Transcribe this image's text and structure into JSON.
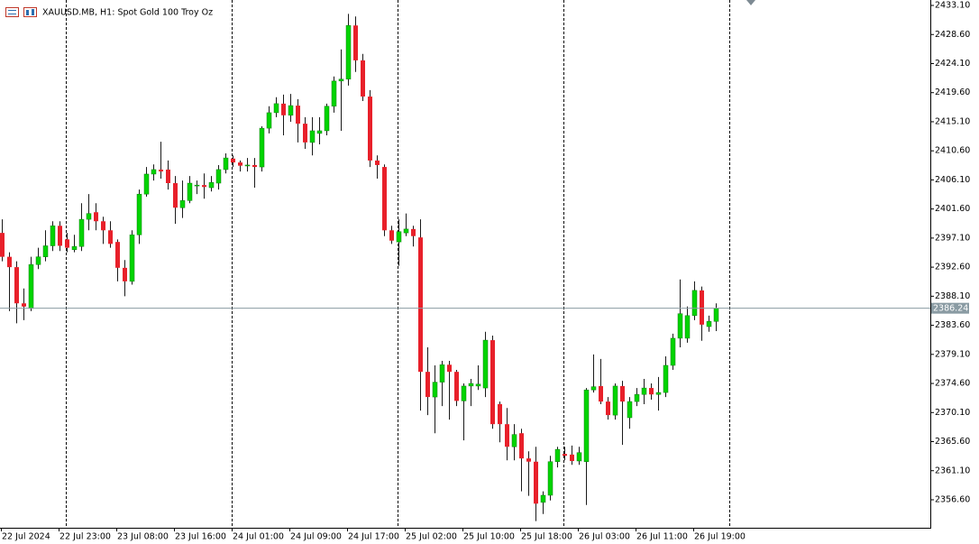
{
  "chart_data": {
    "type": "candlestick",
    "title": "XAUUSD.MB, H1:  Spot Gold 100 Troy Oz",
    "categories": [
      "22 Jul 2024",
      null,
      null,
      null,
      null,
      null,
      null,
      null,
      "22 Jul 23:00",
      null,
      null,
      null,
      null,
      null,
      null,
      null,
      "23 Jul 08:00",
      null,
      null,
      null,
      null,
      null,
      null,
      null,
      "23 Jul 16:00",
      null,
      null,
      null,
      null,
      null,
      null,
      null,
      "24 Jul 01:00",
      null,
      null,
      null,
      null,
      null,
      null,
      null,
      "24 Jul 09:00",
      null,
      null,
      null,
      null,
      null,
      null,
      null,
      "24 Jul 17:00",
      null,
      null,
      null,
      null,
      null,
      null,
      null,
      "25 Jul 02:00",
      null,
      null,
      null,
      null,
      null,
      null,
      null,
      "25 Jul 10:00",
      null,
      null,
      null,
      null,
      null,
      null,
      null,
      "25 Jul 18:00",
      null,
      null,
      null,
      null,
      null,
      null,
      null,
      "26 Jul 03:00",
      null,
      null,
      null,
      null,
      null,
      null,
      null,
      "26 Jul 11:00",
      null,
      null,
      null,
      null,
      null,
      null,
      null,
      "26 Jul 19:00",
      null,
      null,
      null
    ],
    "open": [
      2397.9,
      2394.2,
      2392.6,
      2387.0,
      2386.2,
      2393.0,
      2394.2,
      2395.9,
      2399.0,
      2396.9,
      2395.3,
      2395.8,
      2400.0,
      2401.1,
      2399.7,
      2398.3,
      2396.5,
      2392.5,
      2390.4,
      2397.6,
      2403.9,
      2407.0,
      2407.7,
      2407.7,
      2405.6,
      2401.8,
      2402.9,
      2405.3,
      2405.3,
      2404.9,
      2405.6,
      2407.7,
      2409.4,
      2408.8,
      2408.3,
      2408.4,
      2408.1,
      2414.1,
      2416.5,
      2417.9,
      2416.1,
      2417.6,
      2414.8,
      2411.9,
      2413.3,
      2413.7,
      2417.5,
      2421.4,
      2421.7,
      2430.0,
      2424.6,
      2419.0,
      2409.1,
      2408.1,
      2398.3,
      2396.5,
      2397.9,
      2398.5,
      2397.2,
      2376.4,
      2372.5,
      2374.8,
      2377.5,
      2376.4,
      2371.9,
      2374.2,
      2374.2,
      2373.9,
      2381.3,
      2371.4,
      2368.3,
      2364.8,
      2366.9,
      2363.0,
      2362.5,
      2356.2,
      2357.3,
      2362.5,
      2363.7,
      2363.6,
      2362.6,
      2362.5,
      2373.6,
      2374.2,
      2371.8,
      2369.7,
      2374.2,
      2369.3,
      2371.8,
      2372.9,
      2373.9,
      2372.9,
      2373.2,
      2377.4,
      2381.6,
      2381.6,
      2385.1,
      2389.0,
      2383.4,
      2384.2
    ],
    "high": [
      2400.0,
      2394.9,
      2393.5,
      2389.3,
      2394.2,
      2395.6,
      2398.3,
      2399.7,
      2399.7,
      2397.9,
      2397.6,
      2402.5,
      2403.9,
      2402.5,
      2400.4,
      2399.7,
      2396.9,
      2393.7,
      2398.3,
      2404.6,
      2408.1,
      2408.5,
      2412.0,
      2409.1,
      2406.7,
      2406.0,
      2406.7,
      2406.0,
      2407.1,
      2406.7,
      2408.4,
      2410.2,
      2409.9,
      2409.1,
      2409.5,
      2409.5,
      2414.4,
      2417.5,
      2418.9,
      2419.3,
      2419.4,
      2418.6,
      2415.8,
      2415.8,
      2415.8,
      2417.9,
      2422.1,
      2426.3,
      2431.8,
      2431.4,
      2425.6,
      2420.0,
      2409.9,
      2408.5,
      2399.0,
      2400.0,
      2400.9,
      2399.0,
      2400.0,
      2380.2,
      2377.4,
      2378.1,
      2378.1,
      2376.7,
      2374.6,
      2375.3,
      2377.4,
      2382.6,
      2382.0,
      2371.8,
      2370.8,
      2368.3,
      2367.6,
      2364.1,
      2364.8,
      2357.9,
      2363.4,
      2364.8,
      2364.8,
      2365.0,
      2364.8,
      2373.9,
      2379.1,
      2378.4,
      2372.5,
      2374.6,
      2375.0,
      2372.5,
      2373.9,
      2375.3,
      2374.6,
      2375.6,
      2378.8,
      2382.3,
      2390.7,
      2386.5,
      2390.4,
      2389.6,
      2385.1,
      2387.0
    ],
    "low": [
      2393.5,
      2385.8,
      2383.9,
      2384.4,
      2385.8,
      2392.3,
      2393.5,
      2395.1,
      2395.1,
      2394.9,
      2394.9,
      2395.1,
      2398.3,
      2398.3,
      2396.2,
      2395.6,
      2390.4,
      2388.1,
      2389.9,
      2396.2,
      2403.5,
      2406.0,
      2406.3,
      2404.6,
      2399.3,
      2400.2,
      2402.5,
      2403.9,
      2403.2,
      2404.3,
      2404.6,
      2407.1,
      2408.1,
      2407.4,
      2407.4,
      2404.9,
      2407.4,
      2413.3,
      2415.8,
      2413.0,
      2415.1,
      2411.9,
      2410.9,
      2409.9,
      2411.6,
      2413.0,
      2416.5,
      2413.7,
      2420.7,
      2422.8,
      2418.3,
      2408.1,
      2406.3,
      2397.4,
      2396.2,
      2392.8,
      2397.4,
      2395.8,
      2370.4,
      2369.7,
      2366.9,
      2371.1,
      2369.0,
      2371.1,
      2365.8,
      2371.1,
      2373.6,
      2372.5,
      2367.6,
      2365.5,
      2362.7,
      2362.7,
      2357.9,
      2357.2,
      2353.3,
      2354.4,
      2356.5,
      2361.6,
      2362.7,
      2362.0,
      2362.0,
      2355.8,
      2373.2,
      2371.4,
      2369.0,
      2369.0,
      2365.1,
      2367.6,
      2371.1,
      2371.4,
      2372.1,
      2370.4,
      2372.5,
      2376.7,
      2380.2,
      2380.9,
      2384.4,
      2381.2,
      2382.6,
      2382.7
    ],
    "close": [
      2394.2,
      2392.6,
      2387.0,
      2386.5,
      2393.0,
      2394.2,
      2395.9,
      2399.0,
      2395.9,
      2395.6,
      2395.8,
      2400.0,
      2400.9,
      2399.7,
      2398.3,
      2396.2,
      2392.5,
      2390.4,
      2397.6,
      2403.9,
      2407.0,
      2407.7,
      2407.4,
      2405.6,
      2401.8,
      2402.9,
      2405.6,
      2405.3,
      2405.0,
      2405.7,
      2407.7,
      2409.5,
      2408.8,
      2408.3,
      2408.4,
      2408.1,
      2414.1,
      2416.5,
      2417.9,
      2416.1,
      2417.6,
      2414.8,
      2411.9,
      2413.7,
      2413.7,
      2417.5,
      2421.4,
      2421.7,
      2430.0,
      2424.6,
      2419.0,
      2409.1,
      2408.4,
      2398.3,
      2396.7,
      2398.1,
      2398.5,
      2397.4,
      2376.4,
      2372.5,
      2374.8,
      2377.5,
      2376.4,
      2371.9,
      2374.2,
      2374.6,
      2374.5,
      2381.3,
      2368.3,
      2368.3,
      2364.8,
      2366.7,
      2363.0,
      2362.5,
      2356.0,
      2357.3,
      2362.5,
      2364.4,
      2363.4,
      2362.6,
      2363.9,
      2373.6,
      2374.1,
      2371.8,
      2369.7,
      2374.2,
      2371.8,
      2371.8,
      2372.9,
      2373.9,
      2372.9,
      2373.2,
      2377.4,
      2381.6,
      2385.4,
      2385.1,
      2389.0,
      2383.7,
      2384.2,
      2386.24
    ],
    "up_color": "#00d400",
    "down_color": "#e8202a",
    "wick_color": "#1a1a1a",
    "last_price": 2386.24,
    "last_price_color": "#8a9ba3",
    "ylim": [
      2352.27,
      2433.94
    ],
    "yticks": [
      {
        "value": 2433.1,
        "label": "2433.10"
      },
      {
        "value": 2428.6,
        "label": "2428.60"
      },
      {
        "value": 2424.1,
        "label": "2424.10"
      },
      {
        "value": 2419.6,
        "label": "2419.60"
      },
      {
        "value": 2415.1,
        "label": "2415.10"
      },
      {
        "value": 2410.6,
        "label": "2410.60"
      },
      {
        "value": 2406.1,
        "label": "2406.10"
      },
      {
        "value": 2401.6,
        "label": "2401.60"
      },
      {
        "value": 2397.1,
        "label": "2397.10"
      },
      {
        "value": 2392.6,
        "label": "2392.60"
      },
      {
        "value": 2388.1,
        "label": "2388.10"
      },
      {
        "value": 2383.6,
        "label": "2383.60"
      },
      {
        "value": 2379.1,
        "label": "2379.10"
      },
      {
        "value": 2374.6,
        "label": "2374.60"
      },
      {
        "value": 2370.1,
        "label": "2370.10"
      },
      {
        "value": 2365.6,
        "label": "2365.60"
      },
      {
        "value": 2361.1,
        "label": "2361.10"
      },
      {
        "value": 2356.6,
        "label": "2356.60"
      }
    ],
    "grid": false
  }
}
